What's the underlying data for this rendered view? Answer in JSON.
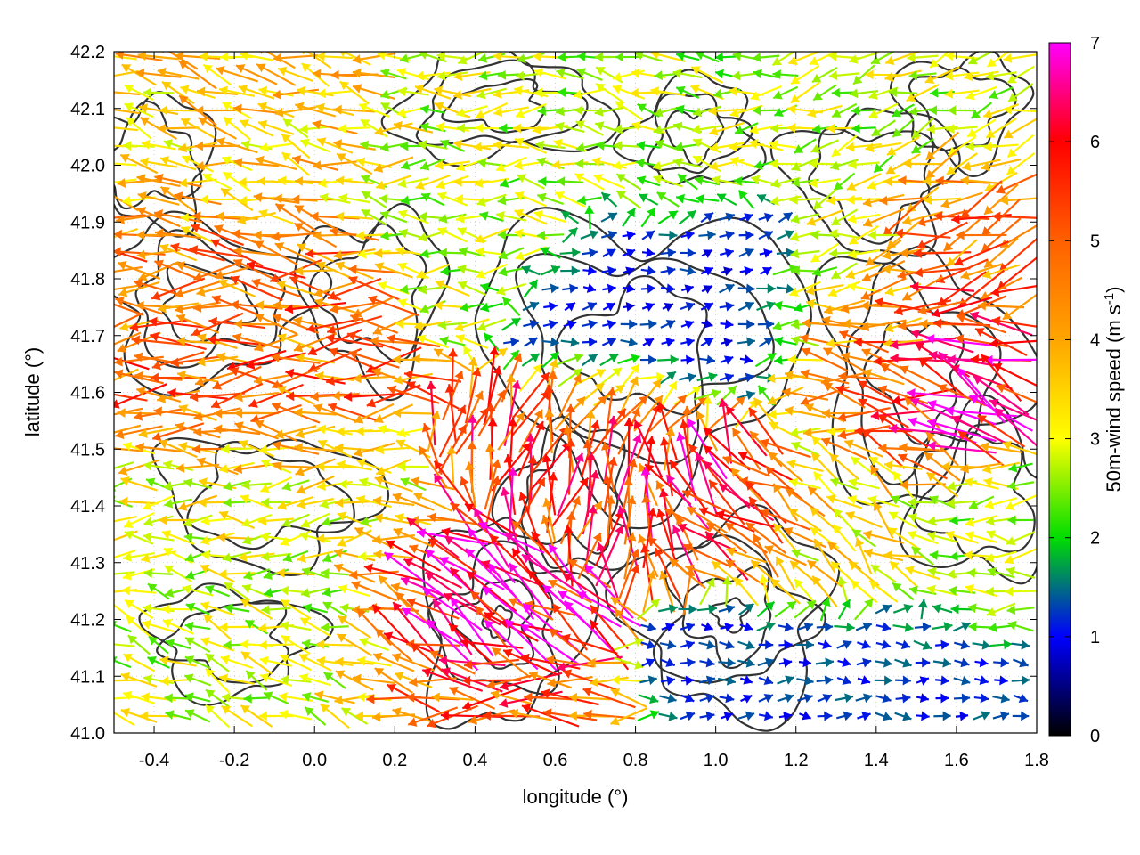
{
  "chart_data": {
    "type": "vector-field",
    "xlabel": "longitude (°)",
    "ylabel": "latitude (°)",
    "xlim": [
      -0.5,
      1.8
    ],
    "ylim": [
      41.0,
      42.2
    ],
    "xticks": [
      "-0.4",
      "-0.2",
      "0.0",
      "0.2",
      "0.4",
      "0.6",
      "0.8",
      "1.0",
      "1.2",
      "1.4",
      "1.6",
      "1.8"
    ],
    "yticks": [
      "41.0",
      "41.1",
      "41.2",
      "41.3",
      "41.4",
      "41.5",
      "41.6",
      "41.7",
      "41.8",
      "41.9",
      "42.0",
      "42.1",
      "42.2"
    ],
    "grid": true,
    "colorbar": {
      "label": "50m-wind speed (m s",
      "label_exponent": "-1",
      "label_suffix": ")",
      "range": [
        0,
        7
      ],
      "ticks": [
        "0",
        "1",
        "2",
        "3",
        "4",
        "5",
        "6",
        "7"
      ],
      "stops": [
        {
          "value": 0,
          "color": "#000000"
        },
        {
          "value": 1,
          "color": "#0000ff"
        },
        {
          "value": 2,
          "color": "#00dd00"
        },
        {
          "value": 3,
          "color": "#ffff00"
        },
        {
          "value": 4,
          "color": "#ffa500"
        },
        {
          "value": 5,
          "color": "#ff6000"
        },
        {
          "value": 6,
          "color": "#ff0000"
        },
        {
          "value": 7,
          "color": "#ff00ff"
        }
      ]
    },
    "contour_color": "#333333",
    "wind_regions": [
      {
        "lon": [
          -0.5,
          0.1
        ],
        "lat": [
          41.5,
          41.9
        ],
        "dir": 180,
        "speed": 4.8
      },
      {
        "lon": [
          -0.5,
          0.2
        ],
        "lat": [
          41.9,
          42.2
        ],
        "dir": 165,
        "speed": 3.6
      },
      {
        "lon": [
          -0.5,
          0.2
        ],
        "lat": [
          41.25,
          41.5
        ],
        "dir": 180,
        "speed": 3.0
      },
      {
        "lon": [
          -0.5,
          0.2
        ],
        "lat": [
          41.0,
          41.25
        ],
        "dir": 160,
        "speed": 2.8
      },
      {
        "lon": [
          0.2,
          0.6
        ],
        "lat": [
          41.8,
          42.2
        ],
        "dir": 180,
        "speed": 2.8
      },
      {
        "lon": [
          0.6,
          1.1
        ],
        "lat": [
          41.95,
          42.2
        ],
        "dir": 170,
        "speed": 2.7
      },
      {
        "lon": [
          0.6,
          1.15
        ],
        "lat": [
          41.6,
          41.9
        ],
        "dir": 10,
        "speed": 1.1
      },
      {
        "lon": [
          0.45,
          1.0
        ],
        "lat": [
          41.35,
          41.6
        ],
        "dir": 75,
        "speed": 5.3
      },
      {
        "lon": [
          0.85,
          1.15
        ],
        "lat": [
          41.35,
          41.5
        ],
        "dir": 160,
        "speed": 6.0
      },
      {
        "lon": [
          0.2,
          0.6
        ],
        "lat": [
          41.1,
          41.35
        ],
        "dir": 150,
        "speed": 6.2
      },
      {
        "lon": [
          0.15,
          0.65
        ],
        "lat": [
          41.0,
          41.1
        ],
        "dir": 180,
        "speed": 4.8
      },
      {
        "lon": [
          1.0,
          1.8
        ],
        "lat": [
          41.0,
          41.2
        ],
        "dir": 0,
        "speed": 1.2
      },
      {
        "lon": [
          1.3,
          1.7
        ],
        "lat": [
          41.5,
          41.75
        ],
        "dir": 155,
        "speed": 6.6
      },
      {
        "lon": [
          1.5,
          1.8
        ],
        "lat": [
          41.75,
          42.0
        ],
        "dir": 200,
        "speed": 4.7
      },
      {
        "lon": [
          1.1,
          1.5
        ],
        "lat": [
          41.25,
          41.5
        ],
        "dir": 135,
        "speed": 3.4
      },
      {
        "lon": [
          1.1,
          1.8
        ],
        "lat": [
          42.0,
          42.2
        ],
        "dir": 200,
        "speed": 2.8
      },
      {
        "lon": [
          1.5,
          1.8
        ],
        "lat": [
          41.2,
          41.45
        ],
        "dir": 180,
        "speed": 2.6
      },
      {
        "lon": [
          1.2,
          1.5
        ],
        "lat": [
          41.5,
          41.85
        ],
        "dir": 190,
        "speed": 3.0
      }
    ]
  }
}
